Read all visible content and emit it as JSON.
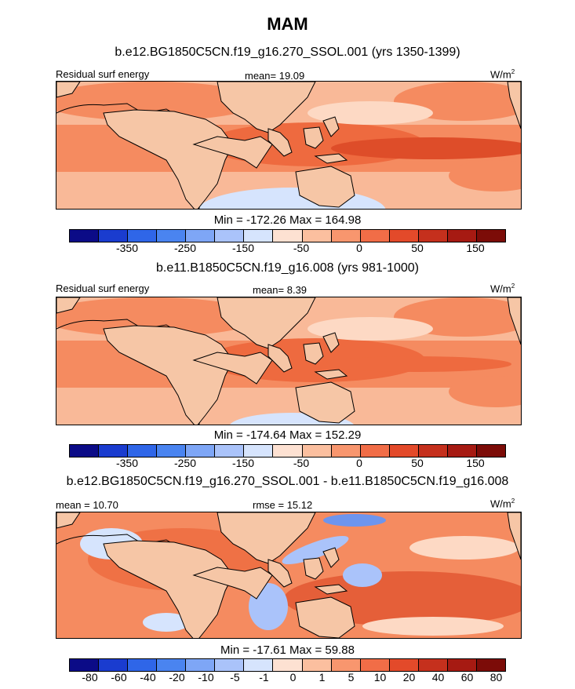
{
  "title": "MAM",
  "units_label": "W/m",
  "units_sup": "2",
  "panels": [
    {
      "subtitle": "b.e12.BG1850C5CN.f19_g16.270_SSOL.001 (yrs 1350-1399)",
      "left_label": "Residual surf energy",
      "center_label": "mean=  19.09",
      "minmax": "Min = -172.26 Max = 164.98",
      "ticks": [
        "-350",
        "-250",
        "-150",
        "-50",
        "0",
        "50",
        "150"
      ]
    },
    {
      "subtitle": "b.e11.B1850C5CN.f19_g16.008 (yrs 981-1000)",
      "left_label": "Residual surf energy",
      "center_label": "mean=  8.39",
      "minmax": "Min = -174.64 Max = 152.29",
      "ticks": [
        "-350",
        "-250",
        "-150",
        "-50",
        "0",
        "50",
        "150"
      ]
    },
    {
      "subtitle": "b.e12.BG1850C5CN.f19_g16.270_SSOL.001 - b.e11.B1850C5CN.f19_g16.008",
      "left_label": "mean =  10.70",
      "center_label": "rmse =  15.12",
      "minmax": "Min = -17.61 Max = 59.88",
      "ticks": [
        "-80",
        "-60",
        "-40",
        "-20",
        "-10",
        "-5",
        "-1",
        "0",
        "1",
        "5",
        "10",
        "20",
        "40",
        "60",
        "80"
      ]
    }
  ],
  "colorbar_colors": [
    "#0b0b87",
    "#1a3ccf",
    "#2f66e8",
    "#4a84f0",
    "#7ea6f6",
    "#aac3fa",
    "#d6e4fd",
    "#fde1d2",
    "#fbbf9f",
    "#f8966e",
    "#f16d47",
    "#e34a2a",
    "#c5301d",
    "#a61a12",
    "#7c0c08"
  ],
  "map_colors": {
    "base": "#f9b998",
    "pale": "#fdd9c4",
    "mid": "#f58b60",
    "strong": "#ee6a3f",
    "deep": "#de4d29",
    "blue_pale": "#d6e4fd",
    "blue_light": "#aac3fa",
    "blue_mid": "#6d95ee",
    "land": "#f6c6a6",
    "coast": "#000000"
  }
}
